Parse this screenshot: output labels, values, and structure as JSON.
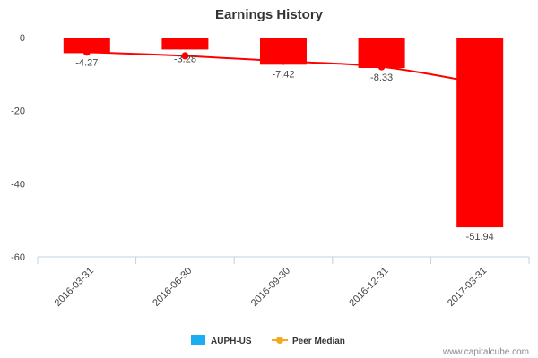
{
  "chart_data": {
    "type": "bar",
    "title": "Earnings History",
    "categories": [
      "2016-03-31",
      "2016-06-30",
      "2016-09-30",
      "2016-12-31",
      "2017-03-31"
    ],
    "series": [
      {
        "name": "AUPH-US",
        "type": "bar",
        "values": [
          -4.27,
          -3.28,
          -7.42,
          -8.33,
          -51.94
        ],
        "data_labels": [
          "-4.27",
          "-3.28",
          "-7.42",
          "-8.33",
          "-51.94"
        ]
      },
      {
        "name": "Peer Median",
        "type": "line",
        "values": [
          -4.0,
          -5.0,
          -6.5,
          -8.0,
          -12.5
        ]
      }
    ],
    "ylim": [
      -60,
      0
    ],
    "yticks": [
      0,
      -20,
      -40,
      -60
    ],
    "ytick_labels": [
      "0",
      "-20",
      "-40",
      "-60"
    ],
    "grid": false,
    "legend_position": "bottom-center",
    "colors": {
      "bars": "#ff0000",
      "line": "#ff0000",
      "line_marker": "#ff0000",
      "legend_bar": "#1aadef",
      "legend_line": "#f7a823"
    }
  },
  "legend": [
    {
      "label": "AUPH-US",
      "icon": "legend-bar-icon"
    },
    {
      "label": "Peer Median",
      "icon": "legend-line-icon"
    }
  ],
  "credit": "www.capitalcube.com"
}
